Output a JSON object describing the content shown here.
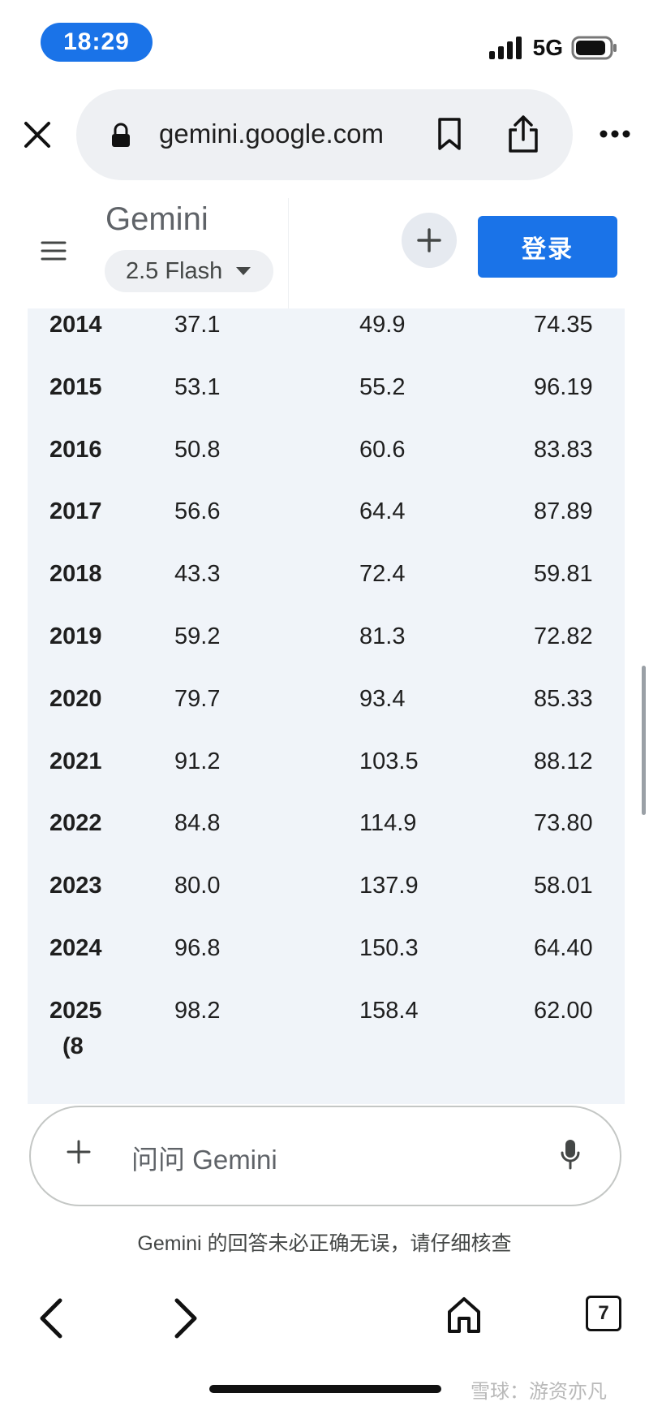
{
  "status_bar": {
    "time": "18:29",
    "network": "5G"
  },
  "browser": {
    "url": "gemini.google.com"
  },
  "header": {
    "title": "Gemini",
    "model": "2.5 Flash",
    "login_label": "登录"
  },
  "table": {
    "rows": [
      {
        "year": "2014",
        "v1": "37.1",
        "v2": "49.9",
        "v3": "74.35"
      },
      {
        "year": "2015",
        "v1": "53.1",
        "v2": "55.2",
        "v3": "96.19"
      },
      {
        "year": "2016",
        "v1": "50.8",
        "v2": "60.6",
        "v3": "83.83"
      },
      {
        "year": "2017",
        "v1": "56.6",
        "v2": "64.4",
        "v3": "87.89"
      },
      {
        "year": "2018",
        "v1": "43.3",
        "v2": "72.4",
        "v3": "59.81"
      },
      {
        "year": "2019",
        "v1": "59.2",
        "v2": "81.3",
        "v3": "72.82"
      },
      {
        "year": "2020",
        "v1": "79.7",
        "v2": "93.4",
        "v3": "85.33"
      },
      {
        "year": "2021",
        "v1": "91.2",
        "v2": "103.5",
        "v3": "88.12"
      },
      {
        "year": "2022",
        "v1": "84.8",
        "v2": "114.9",
        "v3": "73.80"
      },
      {
        "year": "2023",
        "v1": "80.0",
        "v2": "137.9",
        "v3": "58.01"
      },
      {
        "year": "2024",
        "v1": "96.8",
        "v2": "150.3",
        "v3": "64.40"
      },
      {
        "year": "2025",
        "v1": "98.2",
        "v2": "158.4",
        "v3": "62.00",
        "sub": "(8"
      }
    ]
  },
  "composer": {
    "placeholder": "问问 Gemini"
  },
  "disclaimer": "Gemini 的回答未必正确无误，请仔细核查",
  "nav": {
    "tab_count": "7"
  },
  "watermark": "雪球：游资亦凡"
}
